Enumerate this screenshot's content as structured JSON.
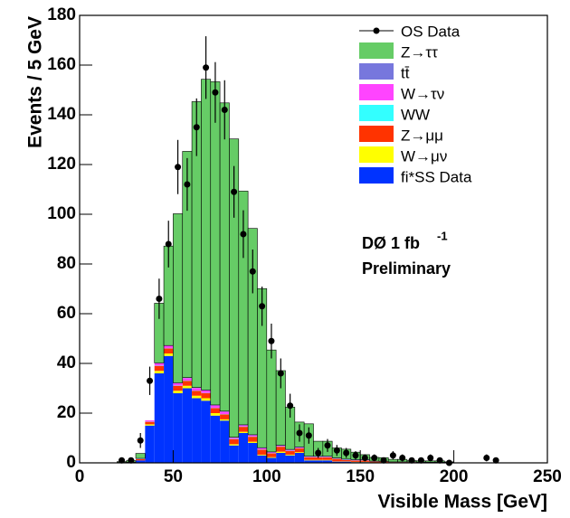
{
  "chart_data": {
    "type": "stacked-histogram",
    "x_label": "Visible Mass  [GeV]",
    "y_label": "Events / 5 GeV",
    "annotations": [
      "DØ 1 fb",
      "-1",
      "Preliminary"
    ],
    "xlim": [
      0,
      250
    ],
    "ylim": [
      0,
      180
    ],
    "xticks": [
      0,
      50,
      100,
      150,
      200,
      250
    ],
    "yticks": [
      0,
      20,
      40,
      60,
      80,
      100,
      120,
      140,
      160,
      180
    ],
    "legend": "upper right",
    "bins": [
      20,
      25,
      30,
      35,
      40,
      45,
      50,
      55,
      60,
      65,
      70,
      75,
      80,
      85,
      90,
      95,
      100,
      105,
      110,
      115,
      120,
      125,
      130,
      135,
      140,
      145,
      150,
      155,
      160,
      165,
      170,
      175,
      180,
      185,
      190,
      195,
      200
    ],
    "series": [
      {
        "name": "Z→ττ",
        "color": "#66cc66",
        "values": [
          0.3,
          0.6,
          2,
          0,
          24,
          40,
          68,
          91,
          115,
          125,
          130,
          124,
          120,
          94,
          83,
          64,
          41,
          30,
          17,
          10,
          13,
          6,
          6,
          4,
          4,
          3,
          2,
          1.5,
          1.5,
          1,
          1,
          0.5,
          0.5,
          0.5,
          0.5,
          0.2
        ]
      },
      {
        "name": "tt̄",
        "color": "#7777dd",
        "values": [
          0,
          0,
          0,
          0,
          0.1,
          0.1,
          0.1,
          0.2,
          0.2,
          0.2,
          0.2,
          0.2,
          0.2,
          0.2,
          0.2,
          0.2,
          0.2,
          0.2,
          0.2,
          0.2,
          0.2,
          0.2,
          0.2,
          0.2,
          0.2,
          0.2,
          0.2,
          0.2,
          0.1,
          0.1,
          0.1,
          0.1,
          0.1,
          0.1,
          0.1,
          0.1
        ]
      },
      {
        "name": "W→τν",
        "color": "#ff44ff",
        "values": [
          0,
          0,
          0.2,
          0.5,
          1,
          1,
          1,
          1,
          1,
          1,
          1,
          1,
          0.5,
          0.5,
          0.5,
          0.5,
          0.3,
          0.3,
          0.3,
          0.3,
          0.2,
          0.2,
          0.2,
          0.1,
          0.1,
          0.1,
          0.1,
          0,
          0,
          0,
          0,
          0,
          0,
          0,
          0,
          0
        ]
      },
      {
        "name": "WW",
        "color": "#33ffff",
        "values": [
          0,
          0,
          0.1,
          0.1,
          0.1,
          0.1,
          0.1,
          0.1,
          0.1,
          0.1,
          0.1,
          0.1,
          0.1,
          0.1,
          0.1,
          0.1,
          0.1,
          0.1,
          0.1,
          0.1,
          0.1,
          0.1,
          0.1,
          0.1,
          0.1,
          0.1,
          0.1,
          0,
          0,
          0,
          0,
          0,
          0,
          0,
          0,
          0
        ]
      },
      {
        "name": "Z→μμ",
        "color": "#ff3300",
        "values": [
          0.2,
          0.3,
          0.5,
          1,
          2,
          2,
          2,
          2,
          2,
          2,
          2,
          2,
          2,
          2,
          2,
          2,
          1.5,
          2,
          1.5,
          1.5,
          1,
          1,
          1,
          1,
          0.5,
          0.5,
          0.5,
          0.3,
          0.3,
          0.2,
          0.2,
          0.2,
          0.1,
          0.1,
          0.1,
          0.1
        ]
      },
      {
        "name": "W→μν",
        "color": "#ffff00",
        "values": [
          0,
          0,
          0,
          0.5,
          1,
          1,
          1,
          1,
          1,
          1,
          1,
          0.5,
          0.5,
          0.5,
          0.5,
          0.3,
          0.3,
          0.5,
          0.3,
          0.3,
          0.2,
          0.2,
          0.2,
          0.1,
          0.1,
          0.1,
          0.1,
          0,
          0,
          0,
          0,
          0,
          0,
          0,
          0,
          0
        ]
      },
      {
        "name": "fi*SS Data",
        "color": "#0033ff",
        "values": [
          0,
          0,
          1,
          15,
          36,
          43,
          28,
          30,
          26,
          25,
          19,
          17,
          7,
          12,
          8,
          3,
          2,
          4,
          3,
          4,
          1,
          1,
          1,
          0.5,
          0.5,
          0.3,
          0.3,
          0.2,
          0.2,
          0.1,
          0.1,
          0.1,
          0.1,
          0.1,
          0.1,
          0
        ]
      }
    ],
    "points": {
      "name": "OS Data",
      "color": "#000000",
      "x": [
        22.5,
        27.5,
        32.5,
        37.5,
        42.5,
        47.5,
        52.5,
        57.5,
        62.5,
        67.5,
        72.5,
        77.5,
        82.5,
        87.5,
        92.5,
        97.5,
        102.5,
        107.5,
        112.5,
        117.5,
        122.5,
        127.5,
        132.5,
        137.5,
        142.5,
        147.5,
        152.5,
        157.5,
        162.5,
        167.5,
        172.5,
        177.5,
        182.5,
        187.5,
        192.5,
        197.5,
        217.5,
        222.5
      ],
      "values": [
        1,
        1,
        9,
        33,
        66,
        88,
        119,
        112,
        135,
        159,
        149,
        142,
        109,
        92,
        77,
        63,
        49,
        36,
        23,
        12,
        11,
        4,
        7,
        5,
        4,
        3,
        2,
        2,
        1,
        3,
        2,
        1,
        1,
        2,
        1,
        0,
        2,
        1
      ],
      "errors": [
        1,
        1,
        3,
        5.7,
        8.1,
        9.4,
        10.9,
        10.6,
        11.6,
        12.6,
        12.2,
        11.9,
        10.4,
        9.6,
        8.8,
        7.9,
        7,
        6,
        4.8,
        3.5,
        3.3,
        2,
        2.6,
        2.2,
        2,
        1.7,
        1.4,
        1.4,
        1,
        1.7,
        1.4,
        1,
        1,
        1.4,
        1,
        0,
        1.4,
        1
      ]
    }
  }
}
